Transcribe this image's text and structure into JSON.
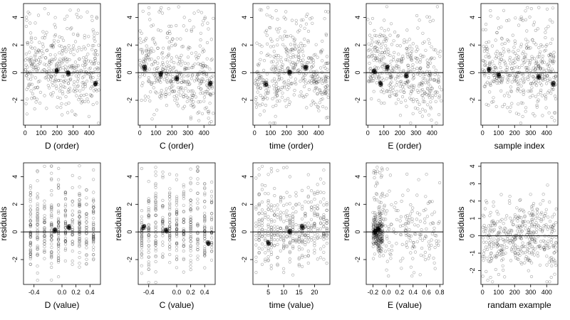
{
  "chart_data": [
    {
      "type": "scatter",
      "xlabel": "D (order)",
      "ylabel": "residuals",
      "xlim": [
        -10,
        470
      ],
      "ylim": [
        -3.8,
        5.0
      ],
      "xticks": [
        0,
        100,
        200,
        300,
        400
      ],
      "xtick_labels": [
        "0",
        "100",
        "200",
        "300",
        "400"
      ],
      "yticks": [
        -2,
        0,
        2,
        4
      ],
      "ytick_labels": [
        "-2",
        "0",
        "2",
        "4"
      ],
      "hline": 0,
      "x_kind": "order",
      "pattern": "flat",
      "clusters": [
        [
          200,
          0.15
        ],
        [
          270,
          -0.05
        ],
        [
          440,
          -0.8
        ]
      ]
    },
    {
      "type": "scatter",
      "xlabel": "C (order)",
      "ylabel": "residuals",
      "xlim": [
        -10,
        470
      ],
      "ylim": [
        -3.8,
        5.0
      ],
      "xticks": [
        0,
        100,
        200,
        300,
        400
      ],
      "xtick_labels": [
        "0",
        "100",
        "200",
        "300",
        "400"
      ],
      "yticks": [
        -2,
        0,
        2,
        4
      ],
      "ytick_labels": [
        "-2",
        "0",
        "2",
        "4"
      ],
      "hline": 0,
      "x_kind": "order",
      "pattern": "decreasing",
      "clusters": [
        [
          30,
          0.35
        ],
        [
          130,
          -0.1
        ],
        [
          230,
          -0.4
        ],
        [
          440,
          -0.8
        ]
      ]
    },
    {
      "type": "scatter",
      "xlabel": "time (order)",
      "ylabel": "residuals",
      "xlim": [
        -10,
        470
      ],
      "ylim": [
        -3.8,
        5.0
      ],
      "xticks": [
        0,
        100,
        200,
        300,
        400
      ],
      "xtick_labels": [
        "0",
        "100",
        "200",
        "300",
        "400"
      ],
      "yticks": [
        -2,
        0,
        2,
        4
      ],
      "ytick_labels": [
        "-2",
        "0",
        "2",
        "4"
      ],
      "hline": 0,
      "x_kind": "order",
      "pattern": "wave",
      "clusters": [
        [
          70,
          -0.8
        ],
        [
          220,
          0.0
        ],
        [
          320,
          0.35
        ]
      ]
    },
    {
      "type": "scatter",
      "xlabel": "E (order)",
      "ylabel": "residuals",
      "xlim": [
        -10,
        470
      ],
      "ylim": [
        -3.8,
        5.0
      ],
      "xticks": [
        0,
        100,
        200,
        300,
        400
      ],
      "xtick_labels": [
        "0",
        "100",
        "200",
        "300",
        "400"
      ],
      "yticks": [
        -2,
        0,
        2,
        4
      ],
      "ytick_labels": [
        "-2",
        "0",
        "2",
        "4"
      ],
      "hline": 0,
      "x_kind": "order",
      "pattern": "decreasing",
      "clusters": [
        [
          40,
          0.1
        ],
        [
          80,
          -0.8
        ],
        [
          120,
          0.35
        ],
        [
          240,
          -0.2
        ]
      ]
    },
    {
      "type": "scatter",
      "xlabel": "sample index",
      "ylabel": "residuals",
      "xlim": [
        -10,
        470
      ],
      "ylim": [
        -3.8,
        5.0
      ],
      "xticks": [
        0,
        100,
        200,
        300,
        400
      ],
      "xtick_labels": [
        "0",
        "100",
        "200",
        "300",
        "400"
      ],
      "yticks": [
        -2,
        0,
        2,
        4
      ],
      "ytick_labels": [
        "-2",
        "0",
        "2",
        "4"
      ],
      "hline": 0,
      "x_kind": "order",
      "pattern": "flat",
      "clusters": [
        [
          40,
          0.2
        ],
        [
          100,
          -0.2
        ],
        [
          350,
          -0.3
        ],
        [
          440,
          -0.8
        ]
      ]
    },
    {
      "type": "scatter",
      "xlabel": "D (value)",
      "ylabel": "residuals",
      "xlim": [
        -0.55,
        0.55
      ],
      "ylim": [
        -3.8,
        5.0
      ],
      "xticks": [
        -0.4,
        0.0,
        0.2,
        0.4
      ],
      "xtick_labels": [
        "-0.4",
        "0.0",
        "0.2",
        "0.4"
      ],
      "yticks": [
        -2,
        0,
        2,
        4
      ],
      "ytick_labels": [
        "-2",
        "0",
        "2",
        "4"
      ],
      "hline": 0,
      "x_kind": "columns",
      "column_xs": [
        -0.45,
        -0.35,
        -0.25,
        -0.15,
        -0.05,
        0.05,
        0.15,
        0.25,
        0.35,
        0.45
      ],
      "clusters": [
        [
          0.1,
          0.35
        ],
        [
          -0.1,
          0.1
        ]
      ]
    },
    {
      "type": "scatter",
      "xlabel": "C (value)",
      "ylabel": "residuals",
      "xlim": [
        -0.55,
        0.55
      ],
      "ylim": [
        -3.8,
        5.0
      ],
      "xticks": [
        -0.4,
        0.0,
        0.2,
        0.4
      ],
      "xtick_labels": [
        "-0.4",
        "0.0",
        "0.2",
        "0.4"
      ],
      "yticks": [
        -2,
        0,
        2,
        4
      ],
      "ytick_labels": [
        "-2",
        "0",
        "2",
        "4"
      ],
      "hline": 0,
      "x_kind": "columns",
      "column_xs": [
        -0.5,
        -0.4,
        -0.3,
        -0.2,
        -0.1,
        0.0,
        0.1,
        0.2,
        0.3,
        0.4,
        0.5
      ],
      "clusters": [
        [
          -0.47,
          0.35
        ],
        [
          -0.15,
          0.1
        ],
        [
          0.45,
          -0.8
        ]
      ]
    },
    {
      "type": "scatter",
      "xlabel": "time (value)",
      "ylabel": "residuals",
      "xlim": [
        0,
        25
      ],
      "ylim": [
        -3.8,
        5.0
      ],
      "xticks": [
        5,
        10,
        15,
        20
      ],
      "xtick_labels": [
        "5",
        "10",
        "15",
        "20"
      ],
      "yticks": [
        -2,
        0,
        2,
        4
      ],
      "ytick_labels": [
        "-2",
        "0",
        "2",
        "4"
      ],
      "hline": 0,
      "x_kind": "columns",
      "column_xs": [
        1,
        2,
        3,
        4,
        5,
        6,
        7,
        8,
        9,
        10,
        11,
        12,
        13,
        14,
        15,
        16,
        17,
        18,
        19,
        20,
        21,
        22,
        23,
        24
      ],
      "clusters": [
        [
          5,
          -0.8
        ],
        [
          12,
          0.0
        ],
        [
          16,
          0.35
        ]
      ]
    },
    {
      "type": "scatter",
      "xlabel": "E (value)",
      "ylabel": "residuals",
      "xlim": [
        -0.3,
        0.85
      ],
      "ylim": [
        -3.8,
        5.0
      ],
      "xticks": [
        -0.2,
        0.0,
        0.2,
        0.4,
        0.6,
        0.8
      ],
      "xtick_labels": [
        "-0.2",
        "0.0",
        "0.2",
        "0.4",
        "0.6",
        "0.8"
      ],
      "yticks": [
        -2,
        0,
        2,
        4
      ],
      "ytick_labels": [
        "-2",
        "0",
        "2",
        "4"
      ],
      "hline": 0,
      "x_kind": "skewed",
      "clusters": [
        [
          -0.17,
          0.0
        ],
        [
          -0.12,
          0.2
        ]
      ]
    },
    {
      "type": "scatter",
      "xlabel": "randam example",
      "ylabel": "residuals",
      "xlim": [
        -10,
        470
      ],
      "ylim": [
        -2.8,
        4.2
      ],
      "xticks": [
        0,
        100,
        200,
        300,
        400
      ],
      "xtick_labels": [
        "0",
        "100",
        "200",
        "300",
        "400"
      ],
      "yticks": [
        -2,
        -1,
        0,
        1,
        2,
        3,
        4
      ],
      "ytick_labels": [
        "-2",
        "-1",
        "0",
        "1",
        "2",
        "3",
        "4"
      ],
      "hline": 0,
      "x_kind": "random",
      "clusters": []
    }
  ]
}
